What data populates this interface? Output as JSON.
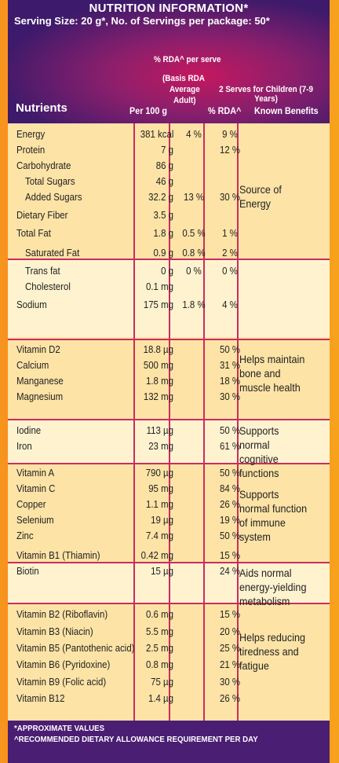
{
  "header": {
    "title": "NUTRITION INFORMATION*",
    "serving": "Serving Size: 20 g*, No. of Servings per package: 50*",
    "rda_per_serve": "% RDA^ per serve",
    "basis_rda": "(Basis RDA",
    "average": "Average",
    "adult": "Adult)",
    "two_serves": "2 Serves for Children (7-9 Years)",
    "col_nutrients": "Nutrients",
    "col_per100": "Per 100 g",
    "col_rda": "% RDA^",
    "col_benefits": "Known Benefits"
  },
  "rows": [
    {
      "name": "Energy",
      "per100": "381 kcal",
      "avg": "4 %",
      "rda": "9 %"
    },
    {
      "name": "Protein",
      "per100": "7 g",
      "avg": "",
      "rda": "12 %"
    },
    {
      "name": "Carbohydrate",
      "per100": "86 g",
      "avg": "",
      "rda": ""
    },
    {
      "name": "Total Sugars",
      "per100": "46 g",
      "avg": "",
      "rda": ""
    },
    {
      "name": "Added Sugars",
      "per100": "32.2 g",
      "avg": "13 %",
      "rda": "30 %"
    },
    {
      "name": "Dietary Fiber",
      "per100": "3.5 g",
      "avg": "",
      "rda": ""
    },
    {
      "name": "Total Fat",
      "per100": "1.8 g",
      "avg": "0.5 %",
      "rda": "1 %"
    },
    {
      "name": "Saturated Fat",
      "per100": "0.9 g",
      "avg": "0.8 %",
      "rda": "2 %"
    },
    {
      "name": "Trans fat",
      "per100": "0 g",
      "avg": "0 %",
      "rda": "0 %"
    },
    {
      "name": "Cholesterol",
      "per100": "0.1 mg",
      "avg": "",
      "rda": ""
    },
    {
      "name": "Sodium",
      "per100": "175 mg",
      "avg": "1.8 %",
      "rda": "4 %"
    },
    {
      "name": "Vitamin D2",
      "per100": "18.8 µg",
      "avg": "",
      "rda": "50 %"
    },
    {
      "name": "Calcium",
      "per100": "500 mg",
      "avg": "",
      "rda": "31 %"
    },
    {
      "name": "Manganese",
      "per100": "1.8 mg",
      "avg": "",
      "rda": "18 %"
    },
    {
      "name": "Magnesium",
      "per100": "132 mg",
      "avg": "",
      "rda": "30 %"
    },
    {
      "name": "Iodine",
      "per100": "113 µg",
      "avg": "",
      "rda": "50 %"
    },
    {
      "name": "Iron",
      "per100": "23 mg",
      "avg": "",
      "rda": "61 %"
    },
    {
      "name": "Vitamin A",
      "per100": "790 µg",
      "avg": "",
      "rda": "50 %"
    },
    {
      "name": "Vitamin C",
      "per100": "95 mg",
      "avg": "",
      "rda": "84 %"
    },
    {
      "name": "Copper",
      "per100": "1.1 mg",
      "avg": "",
      "rda": "26 %"
    },
    {
      "name": "Selenium",
      "per100": "19 µg",
      "avg": "",
      "rda": "19 %"
    },
    {
      "name": "Zinc",
      "per100": "7.4 mg",
      "avg": "",
      "rda": "50 %"
    },
    {
      "name": "Vitamin B1 (Thiamin)",
      "per100": "0.42 mg",
      "avg": "",
      "rda": "15 %"
    },
    {
      "name": "Biotin",
      "per100": "15 µg",
      "avg": "",
      "rda": "24 %"
    },
    {
      "name": "Vitamin B2 (Riboflavin)",
      "per100": "0.6 mg",
      "avg": "",
      "rda": "15 %"
    },
    {
      "name": "Vitamin B3 (Niacin)",
      "per100": "5.5 mg",
      "avg": "",
      "rda": "20 %"
    },
    {
      "name": "Vitamin B5 (Pantothenic acid)",
      "per100": "2.5 mg",
      "avg": "",
      "rda": "25 %"
    },
    {
      "name": "Vitamin B6 (Pyridoxine)",
      "per100": "0.8 mg",
      "avg": "",
      "rda": "21 %"
    },
    {
      "name": "Vitamin B9 (Folic acid)",
      "per100": "75 µg",
      "avg": "",
      "rda": "30 %"
    },
    {
      "name": "Vitamin B12",
      "per100": "1.4 µg",
      "avg": "",
      "rda": "26 %"
    }
  ],
  "benefits": {
    "energy": "Source of Energy",
    "bone": "Helps maintain bone and muscle health",
    "cognitive": "Supports normal cognitive functions",
    "immune": "Supports normal function of immune system",
    "metabolism": "Aids normal energy-yielding metabolism",
    "tiredness": "Helps reducing tiredness and fatigue"
  },
  "footer": {
    "approx": "*APPROXIMATE VALUES",
    "rda_note": "^RECOMMENDED DIETARY ALLOWANCE REQUIREMENT PER DAY"
  }
}
